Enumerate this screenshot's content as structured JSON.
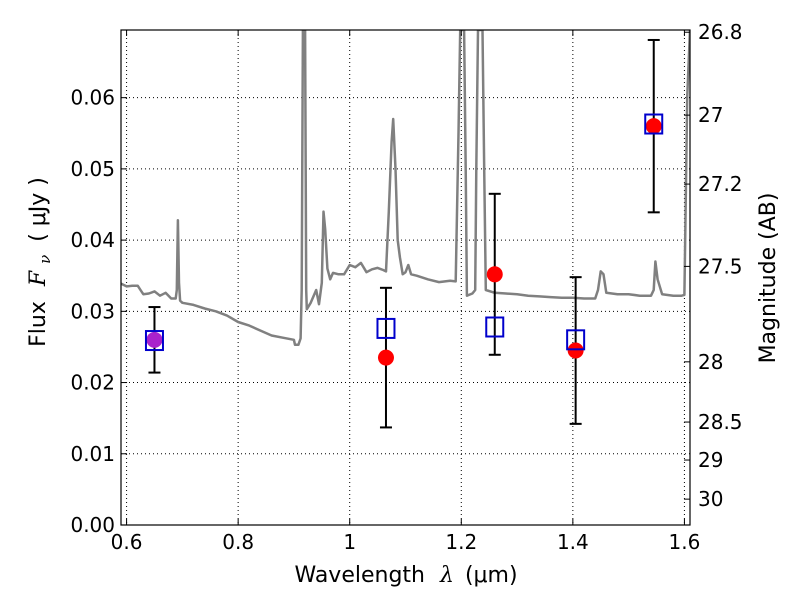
{
  "chart_data": {
    "type": "scatter",
    "xlabel_prefix": "Wavelength",
    "xlabel_symbol": "λ",
    "xlabel_unit": "(μm)",
    "ylabel_prefix": "Flux",
    "ylabel_symbol": "F",
    "ylabel_subscript": "ν",
    "ylabel_unit": "( μJy )",
    "y2label": "Magnitude (AB)",
    "xlim": [
      0.59,
      1.61
    ],
    "ylim": [
      0.0,
      0.0695
    ],
    "grid": true,
    "x_ticks": [
      {
        "value": 0.6,
        "label": "0.6"
      },
      {
        "value": 0.8,
        "label": "0.8"
      },
      {
        "value": 1.0,
        "label": "1"
      },
      {
        "value": 1.2,
        "label": "1.2"
      },
      {
        "value": 1.4,
        "label": "1.4"
      },
      {
        "value": 1.6,
        "label": "1.6"
      }
    ],
    "y_ticks": [
      {
        "value": 0.0,
        "label": "0.00"
      },
      {
        "value": 0.01,
        "label": "0.01"
      },
      {
        "value": 0.02,
        "label": "0.02"
      },
      {
        "value": 0.03,
        "label": "0.03"
      },
      {
        "value": 0.04,
        "label": "0.04"
      },
      {
        "value": 0.05,
        "label": "0.05"
      },
      {
        "value": 0.06,
        "label": "0.06"
      }
    ],
    "y2_ticks": [
      {
        "mag": 26.8,
        "label": "26.8"
      },
      {
        "mag": 27.0,
        "label": "27"
      },
      {
        "mag": 27.2,
        "label": "27.2"
      },
      {
        "mag": 27.5,
        "label": "27.5"
      },
      {
        "mag": 28.0,
        "label": "28"
      },
      {
        "mag": 28.5,
        "label": "28.5"
      },
      {
        "mag": 29.0,
        "label": "29"
      },
      {
        "mag": 30.0,
        "label": "30"
      }
    ],
    "colors": {
      "model": "#808080",
      "observed": "#ff0000",
      "photometry_box": "#0000cc",
      "overlap": "#aa22cc",
      "errorbar": "#000000"
    },
    "series": [
      {
        "points": [
          [
            0.65,
            0.026
          ],
          [
            1.065,
            0.0235
          ],
          [
            1.26,
            0.0352
          ],
          [
            1.405,
            0.0245
          ],
          [
            1.545,
            0.056
          ]
        ],
        "yerr": [
          0.0046,
          0.0098,
          0.0113,
          0.0103,
          0.0121
        ]
      },
      {
        "points": [
          [
            0.65,
            0.0259
          ],
          [
            1.065,
            0.0276
          ],
          [
            1.26,
            0.0278
          ],
          [
            1.405,
            0.026
          ],
          [
            1.545,
            0.0563
          ]
        ]
      },
      {
        "points": [
          [
            0.59,
            0.0339
          ],
          [
            0.6,
            0.0335
          ],
          [
            0.61,
            0.0336
          ],
          [
            0.62,
            0.0336
          ],
          [
            0.625,
            0.033
          ],
          [
            0.63,
            0.0324
          ],
          [
            0.64,
            0.0325
          ],
          [
            0.65,
            0.0328
          ],
          [
            0.66,
            0.0322
          ],
          [
            0.67,
            0.0326
          ],
          [
            0.68,
            0.0318
          ],
          [
            0.688,
            0.0318
          ],
          [
            0.69,
            0.033
          ],
          [
            0.692,
            0.0428
          ],
          [
            0.694,
            0.034
          ],
          [
            0.696,
            0.0315
          ],
          [
            0.7,
            0.0312
          ],
          [
            0.72,
            0.0309
          ],
          [
            0.74,
            0.0304
          ],
          [
            0.76,
            0.03
          ],
          [
            0.78,
            0.0294
          ],
          [
            0.8,
            0.0285
          ],
          [
            0.82,
            0.028
          ],
          [
            0.84,
            0.0273
          ],
          [
            0.86,
            0.0266
          ],
          [
            0.88,
            0.0263
          ],
          [
            0.9,
            0.026
          ],
          [
            0.902,
            0.0253
          ],
          [
            0.908,
            0.0253
          ],
          [
            0.912,
            0.0262
          ],
          [
            0.914,
            0.033
          ],
          [
            0.916,
            0.0695
          ],
          [
            0.92,
            0.0695
          ],
          [
            0.922,
            0.033
          ],
          [
            0.923,
            0.0303
          ],
          [
            0.93,
            0.0312
          ],
          [
            0.94,
            0.033
          ],
          [
            0.945,
            0.031
          ],
          [
            0.95,
            0.034
          ],
          [
            0.953,
            0.044
          ],
          [
            0.956,
            0.0415
          ],
          [
            0.96,
            0.036
          ],
          [
            0.965,
            0.0345
          ],
          [
            0.97,
            0.0354
          ],
          [
            0.98,
            0.0352
          ],
          [
            0.99,
            0.0352
          ],
          [
            1.0,
            0.0365
          ],
          [
            1.01,
            0.0362
          ],
          [
            1.02,
            0.0368
          ],
          [
            1.03,
            0.0355
          ],
          [
            1.04,
            0.0359
          ],
          [
            1.05,
            0.0361
          ],
          [
            1.06,
            0.0358
          ],
          [
            1.065,
            0.0356
          ],
          [
            1.07,
            0.044
          ],
          [
            1.075,
            0.0538
          ],
          [
            1.078,
            0.057
          ],
          [
            1.082,
            0.05
          ],
          [
            1.086,
            0.04
          ],
          [
            1.09,
            0.0376
          ],
          [
            1.095,
            0.0352
          ],
          [
            1.1,
            0.0355
          ],
          [
            1.105,
            0.0365
          ],
          [
            1.11,
            0.0352
          ],
          [
            1.12,
            0.035
          ],
          [
            1.14,
            0.0345
          ],
          [
            1.16,
            0.0341
          ],
          [
            1.18,
            0.0343
          ],
          [
            1.19,
            0.0342
          ],
          [
            1.195,
            0.055
          ],
          [
            1.198,
            0.0695
          ],
          [
            1.205,
            0.0695
          ],
          [
            1.208,
            0.05
          ],
          [
            1.21,
            0.0322
          ],
          [
            1.22,
            0.0325
          ],
          [
            1.225,
            0.033
          ],
          [
            1.227,
            0.05
          ],
          [
            1.23,
            0.0695
          ],
          [
            1.238,
            0.0695
          ],
          [
            1.241,
            0.05
          ],
          [
            1.244,
            0.033
          ],
          [
            1.26,
            0.0326
          ],
          [
            1.28,
            0.0325
          ],
          [
            1.3,
            0.0324
          ],
          [
            1.32,
            0.0322
          ],
          [
            1.34,
            0.0321
          ],
          [
            1.36,
            0.032
          ],
          [
            1.38,
            0.0319
          ],
          [
            1.4,
            0.0319
          ],
          [
            1.42,
            0.0318
          ],
          [
            1.44,
            0.0318
          ],
          [
            1.445,
            0.033
          ],
          [
            1.45,
            0.0356
          ],
          [
            1.455,
            0.0352
          ],
          [
            1.46,
            0.0326
          ],
          [
            1.48,
            0.0324
          ],
          [
            1.5,
            0.0324
          ],
          [
            1.52,
            0.0322
          ],
          [
            1.54,
            0.0322
          ],
          [
            1.545,
            0.033
          ],
          [
            1.548,
            0.037
          ],
          [
            1.552,
            0.0345
          ],
          [
            1.56,
            0.0324
          ],
          [
            1.58,
            0.0322
          ],
          [
            1.595,
            0.0322
          ],
          [
            1.6,
            0.0323
          ],
          [
            1.605,
            0.06
          ],
          [
            1.61,
            0.0695
          ]
        ]
      }
    ]
  }
}
